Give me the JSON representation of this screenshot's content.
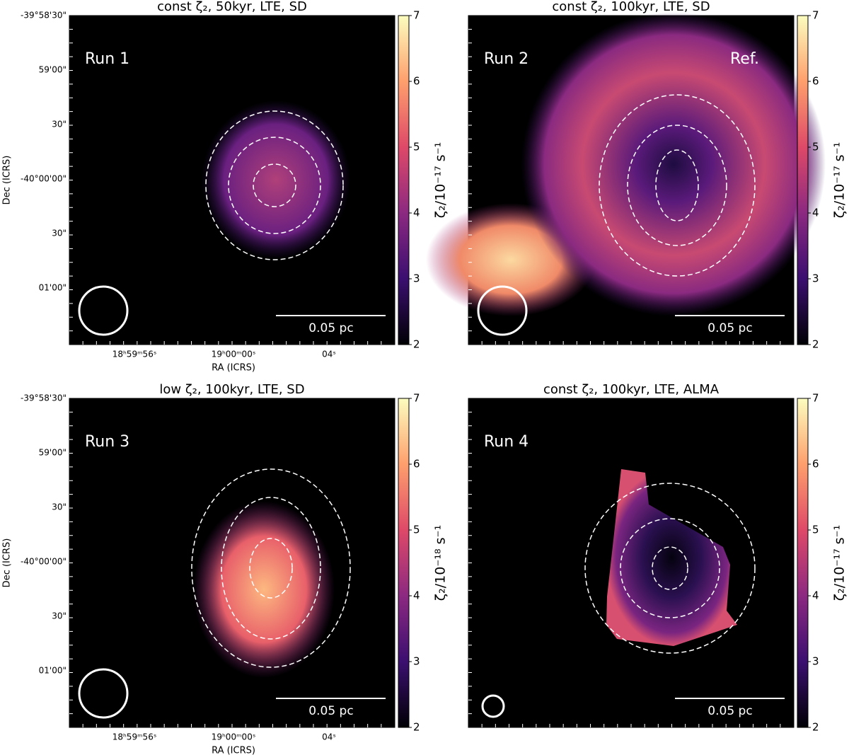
{
  "axes": {
    "y_label": "Dec (ICRS)",
    "x_label": "RA (ICRS)",
    "y_ticks": [
      "-39°58'30\"",
      "59'00\"",
      "30\"",
      "-40°00'00\"",
      "30\"",
      "01'00\""
    ],
    "x_ticks": [
      "18ʰ59ᵐ56ˢ",
      "19ʰ00ᵐ00ˢ",
      "04ˢ"
    ]
  },
  "panels": [
    {
      "title": "const ζ₂, 50kyr, LTE, SD",
      "run_label": "Run 1",
      "scale_bar": "0.05 pc",
      "colorbar": {
        "label": "ζ₂/10⁻¹⁷ s⁻¹",
        "lim": [
          2,
          7
        ],
        "ticks": [
          2,
          3,
          4,
          5,
          6,
          7
        ]
      }
    },
    {
      "title": "const ζ₂, 100kyr, LTE, SD",
      "run_label": "Run 2",
      "annotation": "Ref.",
      "scale_bar": "0.05 pc",
      "colorbar": {
        "label": "ζ₂/10⁻¹⁷ s⁻¹",
        "lim": [
          2,
          7
        ],
        "ticks": [
          2,
          3,
          4,
          5,
          6,
          7
        ]
      }
    },
    {
      "title": "low ζ₂, 100kyr, LTE, SD",
      "run_label": "Run 3",
      "scale_bar": "0.05 pc",
      "colorbar": {
        "label": "ζ₂/10⁻¹⁸ s⁻¹",
        "lim": [
          2,
          7
        ],
        "ticks": [
          2,
          3,
          4,
          5,
          6,
          7
        ]
      }
    },
    {
      "title": "const ζ₂, 100kyr, LTE, ALMA",
      "run_label": "Run 4",
      "scale_bar": "0.05 pc",
      "colorbar": {
        "label": "ζ₂/10⁻¹⁷ s⁻¹",
        "lim": [
          2,
          7
        ],
        "ticks": [
          2,
          3,
          4,
          5,
          6,
          7
        ]
      }
    }
  ]
}
